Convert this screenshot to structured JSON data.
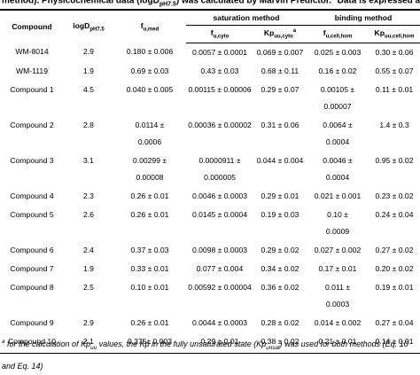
{
  "caption": {
    "parts": [
      {
        "text": "method). Physicochemical data (logD"
      },
      {
        "text": "pH7.5",
        "style": "sub"
      },
      {
        "text": ") was calculated by Marvin Predictor. "
      },
      {
        "text": "a",
        "style": "sup"
      },
      {
        "text": "Data is expressed as mean ± SD."
      }
    ]
  },
  "table": {
    "group_headers": [
      "saturation method",
      "binding method"
    ],
    "headers": [
      {
        "text": "Compound"
      },
      {
        "text": "logD",
        "sub": "pH7.5"
      },
      {
        "text": "f",
        "sub": "u,med"
      },
      {
        "text": "f",
        "sub": "u,cyto"
      },
      {
        "text": "Kp",
        "sub": "uu,cyto",
        "sup": "a"
      },
      {
        "text": "f",
        "sub": "u,cell,hom"
      },
      {
        "text": "Kp",
        "sub": "uu,cell,hom"
      }
    ],
    "rows": [
      [
        "WM-8014",
        "2.9",
        "0.180 ± 0.006",
        "0.0057 ± 0.0001",
        "0.069 ± 0.007",
        "0.025 ± 0.003",
        "0.30 ± 0.06"
      ],
      [
        "WM-1119",
        "1.9",
        "0.69 ± 0.03",
        "0.43 ± 0.03",
        "0.68 ± 0.11",
        "0.16 ± 0.02",
        "0.55 ± 0.07"
      ],
      [
        "Compound 1",
        "4.5",
        "0.040 ± 0.005",
        "0.00115 ± 0.00006",
        "0.29 ± 0.07",
        "0.00105 ±\n0.00007",
        "0.11 ± 0.01"
      ],
      [
        "Compound 2",
        "2.8",
        "0.0114 ±\n0.0006",
        "0.00036 ± 0.00002",
        "0.31 ± 0.06",
        "0.0064 ±\n0.0004",
        "1.4 ± 0.3"
      ],
      [
        "Compound 3",
        "3.1",
        "0.00299 ±\n0.00008",
        "0.0000911 ±\n0.000005",
        "0.044 ± 0.004",
        "0.0046 ±\n0.0004",
        "0.95 ± 0.02"
      ],
      [
        "Compound 4",
        "2.3",
        "0.26 ± 0.01",
        "0.0046 ± 0.0003",
        "0.29 ± 0.01",
        "0.021 ± 0.001",
        "0.23 ± 0.02"
      ],
      [
        "Compound 5",
        "2.6",
        "0.26 ± 0.01",
        "0.0145 ± 0.0004",
        "0.19 ± 0.03",
        "0.10 ±\n0.0009",
        "0.24 ± 0.04"
      ],
      [
        "Compound 6",
        "2.4",
        "0.37 ± 0.03",
        "0.0098 ± 0.0003",
        "0.29 ± 0.02",
        "0.027 ± 0.002",
        "0.27 ± 0.02"
      ],
      [
        "Compound 7",
        "1.9",
        "0.33 ± 0.01",
        "0.077 ± 0.004",
        "0.34 ± 0.02",
        "0.17 ± 0.01",
        "0.20 ± 0.02"
      ],
      [
        "Compound 8",
        "2.5",
        "0.10 ± 0.01",
        "0.00592 ± 0.00004",
        "0.36 ± 0.02",
        "0.011 ±\n0.0003",
        "0.19 ± 0.01"
      ],
      [
        "Compound 9",
        "2.9",
        "0.26 ± 0.01",
        "0.0044 ± 0.0003",
        "0.28 ± 0.02",
        "0.014 ± 0.002",
        "0.27 ± 0.04"
      ],
      [
        "Compound 10",
        "2.1",
        "0.375± 0.003",
        "0.29 ± 0.01",
        "0.38 ± 0.02",
        "0.21 ± 0.01",
        "0.14 ± 0.01"
      ]
    ]
  },
  "footnote": {
    "parts": [
      {
        "text": "a",
        "style": "sup"
      },
      {
        "text": " for the calculation of Kp"
      },
      {
        "text": "uu",
        "style": "sub"
      },
      {
        "text": " values, the Kp in the fully unsaturated state (Kp"
      },
      {
        "text": "unsat",
        "style": "sub"
      },
      {
        "text": ") was used for both methods (Eq. 10 and Eq. 14)"
      }
    ]
  }
}
